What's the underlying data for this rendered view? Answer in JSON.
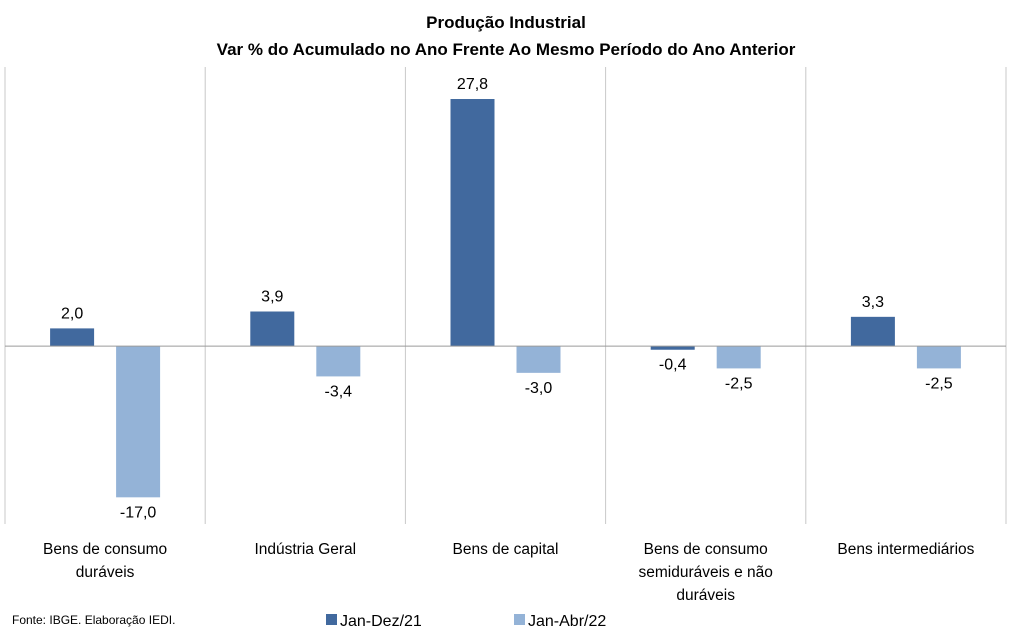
{
  "chart_data": {
    "type": "bar",
    "title": "Produção  Industrial",
    "subtitle": "Var % do Acumulado  no  Ano Frente Ao Mesmo Período  do Ano Anterior",
    "categories": [
      [
        "Bens de consumo",
        "duráveis"
      ],
      [
        "Indústria Geral"
      ],
      [
        "Bens de capital"
      ],
      [
        "Bens de consumo",
        "semiduráveis e não",
        "duráveis"
      ],
      [
        "Bens intermediários"
      ]
    ],
    "series": [
      {
        "name": "Jan-Dez/21",
        "color": "#41699E",
        "values": [
          2.0,
          3.9,
          27.8,
          -0.4,
          3.3
        ],
        "labels": [
          "2,0",
          "3,9",
          "27,8",
          "-0,4",
          "3,3"
        ]
      },
      {
        "name": "Jan-Abr/22",
        "color": "#94B3D7",
        "values": [
          -17.0,
          -3.4,
          -3.0,
          -2.5,
          -2.5
        ],
        "labels": [
          "-17,0",
          "-3,4",
          "-3,0",
          "-2,5",
          "-2,5"
        ]
      }
    ],
    "ylim": [
      -20,
      31.4
    ],
    "gridlines": "vertical category separators",
    "legend_position": "bottom"
  },
  "source": "Fonte: IBGE. Elaboração IEDI."
}
